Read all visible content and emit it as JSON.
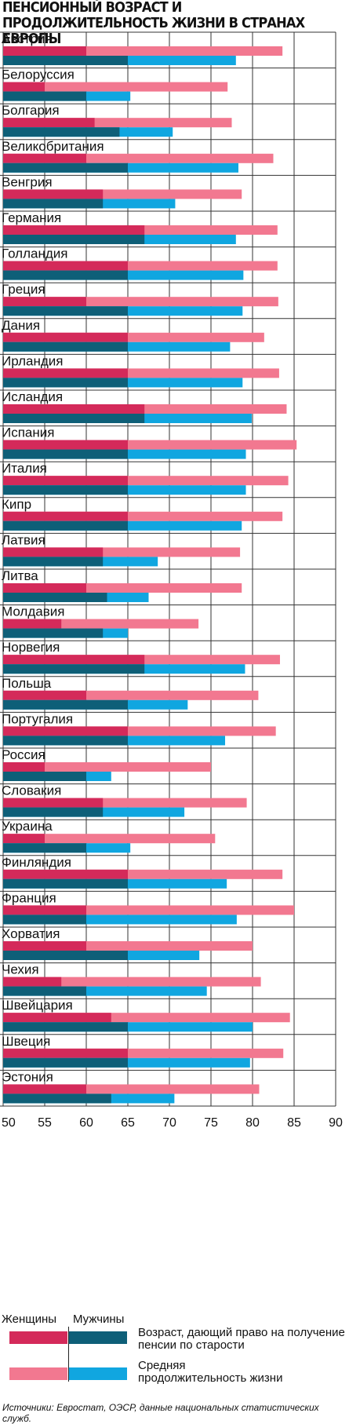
{
  "title": "ПЕНСИОННЫЙ ВОЗРАСТ И ПРОДОЛЖИТЕЛЬНОСТЬ ЖИЗНИ В СТРАНАХ ЕВРОПЫ",
  "colors": {
    "women_pension": "#d42a5a",
    "women_life": "#f27890",
    "men_pension": "#0e5f78",
    "men_life": "#10a6e0"
  },
  "legend": {
    "women": "Женщины",
    "men": "Мужчины",
    "pension_label": "Возраст, дающий право на получение пенсии по старости",
    "life_label": "Средняя продолжительность жизни"
  },
  "source": "Источники: Евростат, ОЭСР, данные национальных статистических служб.",
  "chart_data": {
    "type": "bar",
    "orientation": "horizontal",
    "xlim": [
      50,
      90
    ],
    "xticks": [
      50,
      55,
      60,
      65,
      70,
      75,
      80,
      85,
      90
    ],
    "grid": true,
    "series": [
      {
        "name": "Женщины — возраст, дающий право на получение пенсии по старости",
        "key": "women_pension"
      },
      {
        "name": "Женщины — средняя продолжительность жизни",
        "key": "women_life"
      },
      {
        "name": "Мужчины — возраст, дающий право на получение пенсии по старости",
        "key": "men_pension"
      },
      {
        "name": "Мужчины — средняя продолжительность жизни",
        "key": "men_life"
      }
    ],
    "countries": [
      {
        "name": "Австрия",
        "women_pension": 60,
        "women_life": 83.6,
        "men_pension": 65,
        "men_life": 78
      },
      {
        "name": "Белоруссия",
        "women_pension": 55,
        "women_life": 77,
        "men_pension": 60,
        "men_life": 65.3
      },
      {
        "name": "Болгария",
        "women_pension": 61,
        "women_life": 77.5,
        "men_pension": 64,
        "men_life": 70.4
      },
      {
        "name": "Великобритания",
        "women_pension": 60,
        "women_life": 82.5,
        "men_pension": 65,
        "men_life": 78.3
      },
      {
        "name": "Венгрия",
        "women_pension": 62,
        "women_life": 78.7,
        "men_pension": 62,
        "men_life": 70.7
      },
      {
        "name": "Германия",
        "women_pension": 67,
        "women_life": 83,
        "men_pension": 67,
        "men_life": 78
      },
      {
        "name": "Голландия",
        "women_pension": 65,
        "women_life": 83,
        "men_pension": 65,
        "men_life": 78.9
      },
      {
        "name": "Греция",
        "women_pension": 60,
        "women_life": 83.1,
        "men_pension": 65,
        "men_life": 78.8
      },
      {
        "name": "Дания",
        "women_pension": 65,
        "women_life": 81.4,
        "men_pension": 65,
        "men_life": 77.3
      },
      {
        "name": "Ирландия",
        "women_pension": 65,
        "women_life": 83.2,
        "men_pension": 65,
        "men_life": 78.8
      },
      {
        "name": "Исландия",
        "women_pension": 67,
        "women_life": 84.1,
        "men_pension": 67,
        "men_life": 79.9
      },
      {
        "name": "Испания",
        "women_pension": 65,
        "women_life": 85.3,
        "men_pension": 65,
        "men_life": 79.2
      },
      {
        "name": "Италия",
        "women_pension": 65,
        "women_life": 84.3,
        "men_pension": 65,
        "men_life": 79.2
      },
      {
        "name": "Кипр",
        "women_pension": 65,
        "women_life": 83.6,
        "men_pension": 65,
        "men_life": 78.7
      },
      {
        "name": "Латвия",
        "women_pension": 62,
        "women_life": 78.5,
        "men_pension": 62,
        "men_life": 68.6
      },
      {
        "name": "Литва",
        "women_pension": 60,
        "women_life": 78.7,
        "men_pension": 62.5,
        "men_life": 67.5
      },
      {
        "name": "Молдавия",
        "women_pension": 57,
        "women_life": 73.5,
        "men_pension": 62,
        "men_life": 65
      },
      {
        "name": "Норвегия",
        "women_pension": 67,
        "women_life": 83.3,
        "men_pension": 67,
        "men_life": 79.1
      },
      {
        "name": "Польша",
        "women_pension": 60,
        "women_life": 80.7,
        "men_pension": 65,
        "men_life": 72.2
      },
      {
        "name": "Португалия",
        "women_pension": 65,
        "women_life": 82.8,
        "men_pension": 65,
        "men_life": 76.7
      },
      {
        "name": "Россия",
        "women_pension": 55,
        "women_life": 75,
        "men_pension": 60,
        "men_life": 63
      },
      {
        "name": "Словакия",
        "women_pension": 62,
        "women_life": 79.3,
        "men_pension": 62,
        "men_life": 71.8
      },
      {
        "name": "Украина",
        "women_pension": 55,
        "women_life": 75.5,
        "men_pension": 60,
        "men_life": 65.3
      },
      {
        "name": "Финляндия",
        "women_pension": 65,
        "women_life": 83.6,
        "men_pension": 65,
        "men_life": 76.9
      },
      {
        "name": "Франция",
        "women_pension": 60,
        "women_life": 85,
        "men_pension": 60,
        "men_life": 78.1
      },
      {
        "name": "Хорватия",
        "women_pension": 60,
        "women_life": 80,
        "men_pension": 65,
        "men_life": 73.6
      },
      {
        "name": "Чехия",
        "women_pension": 57,
        "women_life": 81,
        "men_pension": 60,
        "men_life": 74.5
      },
      {
        "name": "Швейцария",
        "women_pension": 63,
        "women_life": 84.5,
        "men_pension": 65,
        "men_life": 80
      },
      {
        "name": "Швеция",
        "women_pension": 65,
        "women_life": 83.7,
        "men_pension": 65,
        "men_life": 79.7
      },
      {
        "name": "Эстония",
        "women_pension": 60,
        "women_life": 80.8,
        "men_pension": 63,
        "men_life": 70.6
      }
    ]
  }
}
